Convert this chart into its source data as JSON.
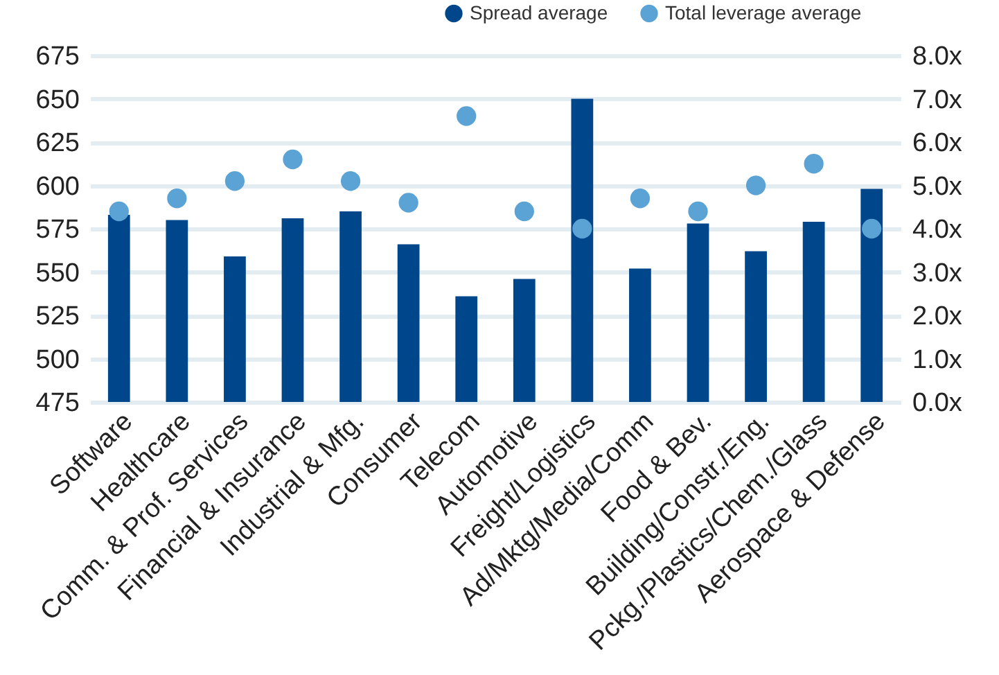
{
  "chart_data": {
    "type": "bar",
    "categories": [
      "Software",
      "Healthcare",
      "Comm. & Prof. Services",
      "Financial & Insurance",
      "Industrial & Mfg.",
      "Consumer",
      "Telecom",
      "Automotive",
      "Freight/Logistics",
      "Ad/Mktg/Media/Comm",
      "Food & Bev.",
      "Building/Constr./Eng.",
      "Pckg./Plastics/Chem./Glass",
      "Aerospace & Defense"
    ],
    "series": [
      {
        "name": "Spread average",
        "color": "#00468b",
        "values": [
          583,
          580,
          559,
          581,
          585,
          566,
          536,
          546,
          650,
          552,
          578,
          562,
          579,
          598
        ]
      },
      {
        "name": "Total leverage average",
        "type": "scatter",
        "axis": "y2",
        "color": "#5ba3d5",
        "values": [
          4.4,
          4.7,
          5.1,
          5.6,
          5.1,
          4.6,
          6.6,
          4.4,
          4.0,
          4.7,
          4.4,
          5.0,
          5.5,
          4.0
        ]
      }
    ],
    "ylim": [
      475,
      675
    ],
    "yticks": [
      475,
      500,
      525,
      550,
      575,
      600,
      625,
      650,
      675
    ],
    "y2lim": [
      0,
      8
    ],
    "y2ticks": [
      {
        "value": 0,
        "label": "0.0x"
      },
      {
        "value": 1,
        "label": "1.0x"
      },
      {
        "value": 2,
        "label": "2.0x"
      },
      {
        "value": 3,
        "label": "3.0x"
      },
      {
        "value": 4,
        "label": "4.0x"
      },
      {
        "value": 5,
        "label": "5.0x"
      },
      {
        "value": 6,
        "label": "6.0x"
      },
      {
        "value": 7,
        "label": "7.0x"
      },
      {
        "value": 8,
        "label": "8.0x"
      }
    ],
    "grid": "y",
    "legend": "top right",
    "marker": "circle"
  }
}
